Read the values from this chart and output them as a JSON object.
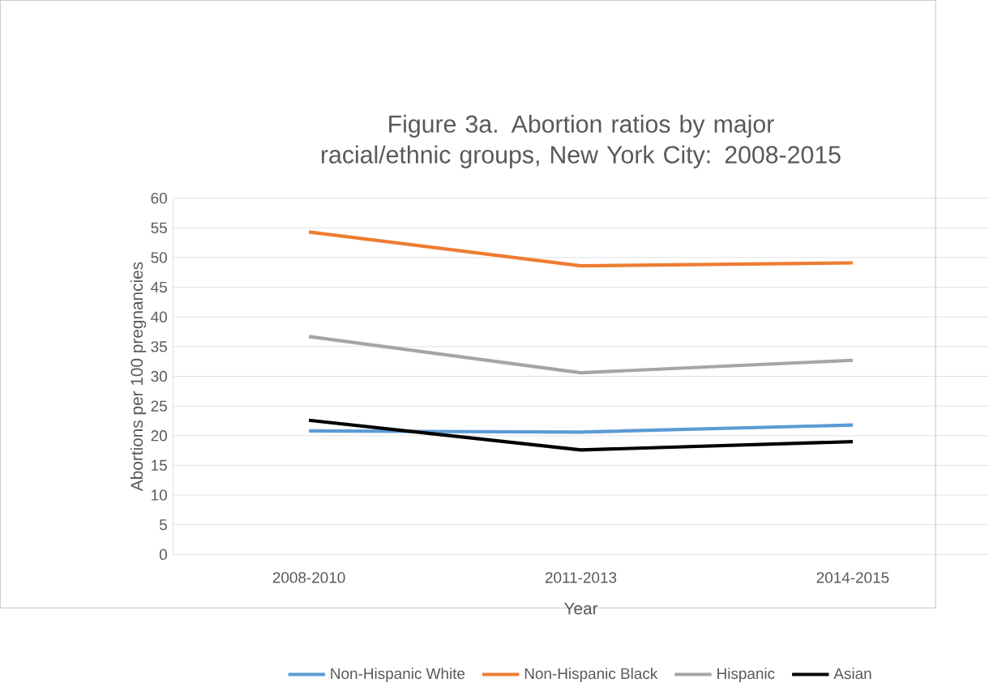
{
  "chart_data": {
    "type": "line",
    "title": "Figure 3a. Abortion ratios by major racial/ethnic groups, New York City: 2008-2015",
    "xlabel": "Year",
    "ylabel": "Abortions per 100 pregnancies",
    "categories": [
      "2008-2010",
      "2011-2013",
      "2014-2015"
    ],
    "series": [
      {
        "name": "Non-Hispanic White",
        "color": "#5b9bd5",
        "values": [
          20.8,
          20.6,
          21.8
        ]
      },
      {
        "name": "Non-Hispanic Black",
        "color": "#ed7d31",
        "values": [
          54.3,
          48.6,
          49.1
        ]
      },
      {
        "name": "Hispanic",
        "color": "#a5a5a5",
        "values": [
          36.7,
          30.6,
          32.7
        ]
      },
      {
        "name": "Asian",
        "color": "#000000",
        "values": [
          22.6,
          17.6,
          19.0
        ]
      }
    ],
    "ylim": [
      0,
      60
    ],
    "yticks": [
      0,
      5,
      10,
      15,
      20,
      25,
      30,
      35,
      40,
      45,
      50,
      55,
      60
    ],
    "grid": "y",
    "legend": "bottom",
    "marker": "none",
    "line_style": "solid"
  }
}
